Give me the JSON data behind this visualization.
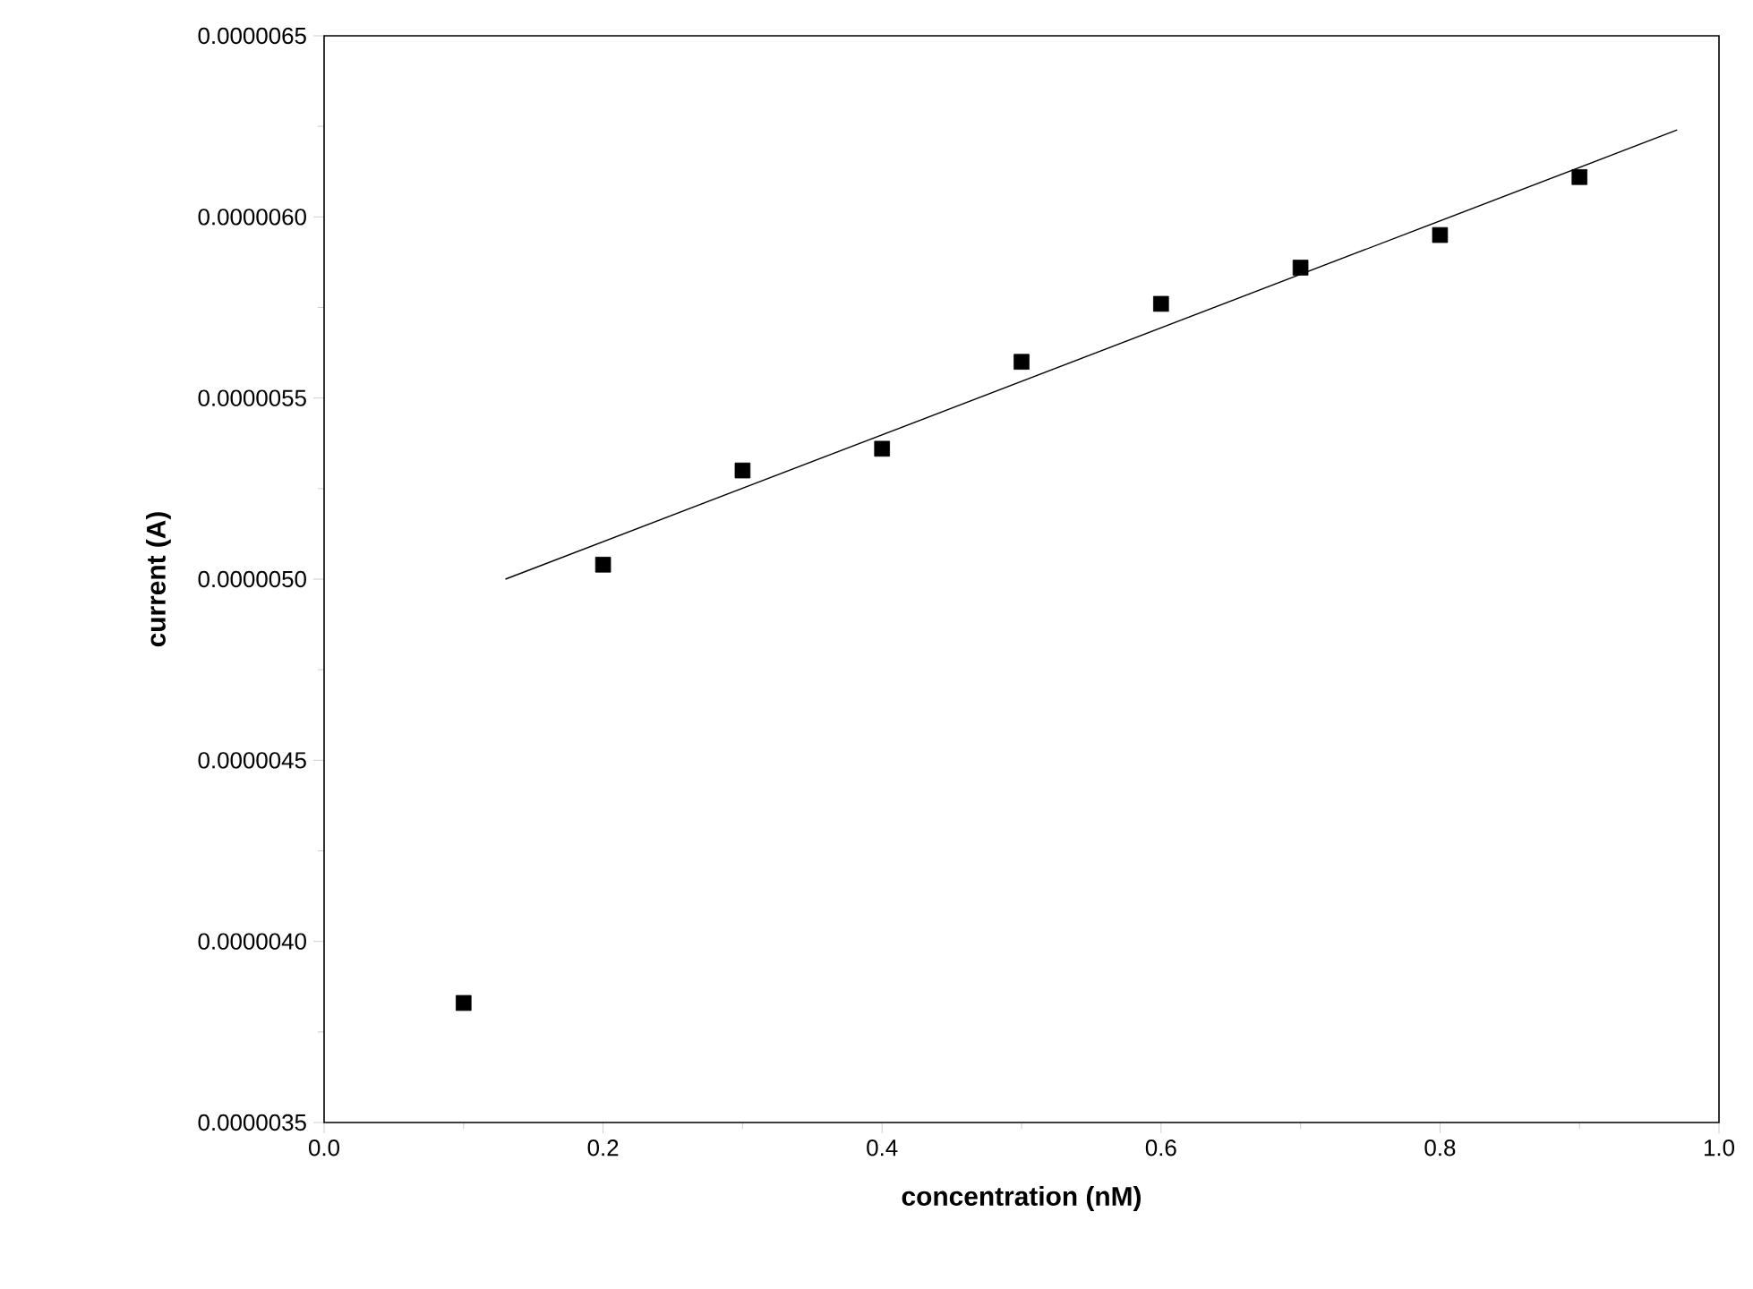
{
  "chart_data": {
    "type": "scatter",
    "xlabel": "concentration (nM)",
    "ylabel": "current (A)",
    "xlim": [
      0,
      1.0
    ],
    "ylim": [
      3.5e-06,
      6.5e-06
    ],
    "xticks": [
      {
        "value": 0,
        "label": "0.0"
      },
      0.2,
      0.4,
      0.6,
      0.8,
      {
        "value": 1.0,
        "label": "1.0"
      }
    ],
    "yticks": [
      {
        "value": 3.5e-06,
        "label": "0.0000035"
      },
      {
        "value": 4e-06,
        "label": "0.0000040"
      },
      {
        "value": 4.5e-06,
        "label": "0.0000045"
      },
      {
        "value": 5e-06,
        "label": "0.0000050"
      },
      {
        "value": 5.5e-06,
        "label": "0.0000055"
      },
      {
        "value": 6e-06,
        "label": "0.0000060"
      },
      {
        "value": 6.5e-06,
        "label": "0.0000065"
      }
    ],
    "marker": "square",
    "x": [
      0.1,
      0.2,
      0.3,
      0.4,
      0.5,
      0.6,
      0.7,
      0.8,
      0.9
    ],
    "series": [
      {
        "color": "#000000",
        "values": [
          3.83e-06,
          5.04e-06,
          5.3e-06,
          5.36e-06,
          5.6e-06,
          5.76e-06,
          5.86e-06,
          5.95e-06,
          6.11e-06
        ]
      },
      {
        "type": "line",
        "color": "#000000",
        "marker": "none",
        "line_style": "solid",
        "x": [
          0.13,
          0.97
        ],
        "values": [
          5e-06,
          6.24e-06
        ]
      }
    ]
  }
}
